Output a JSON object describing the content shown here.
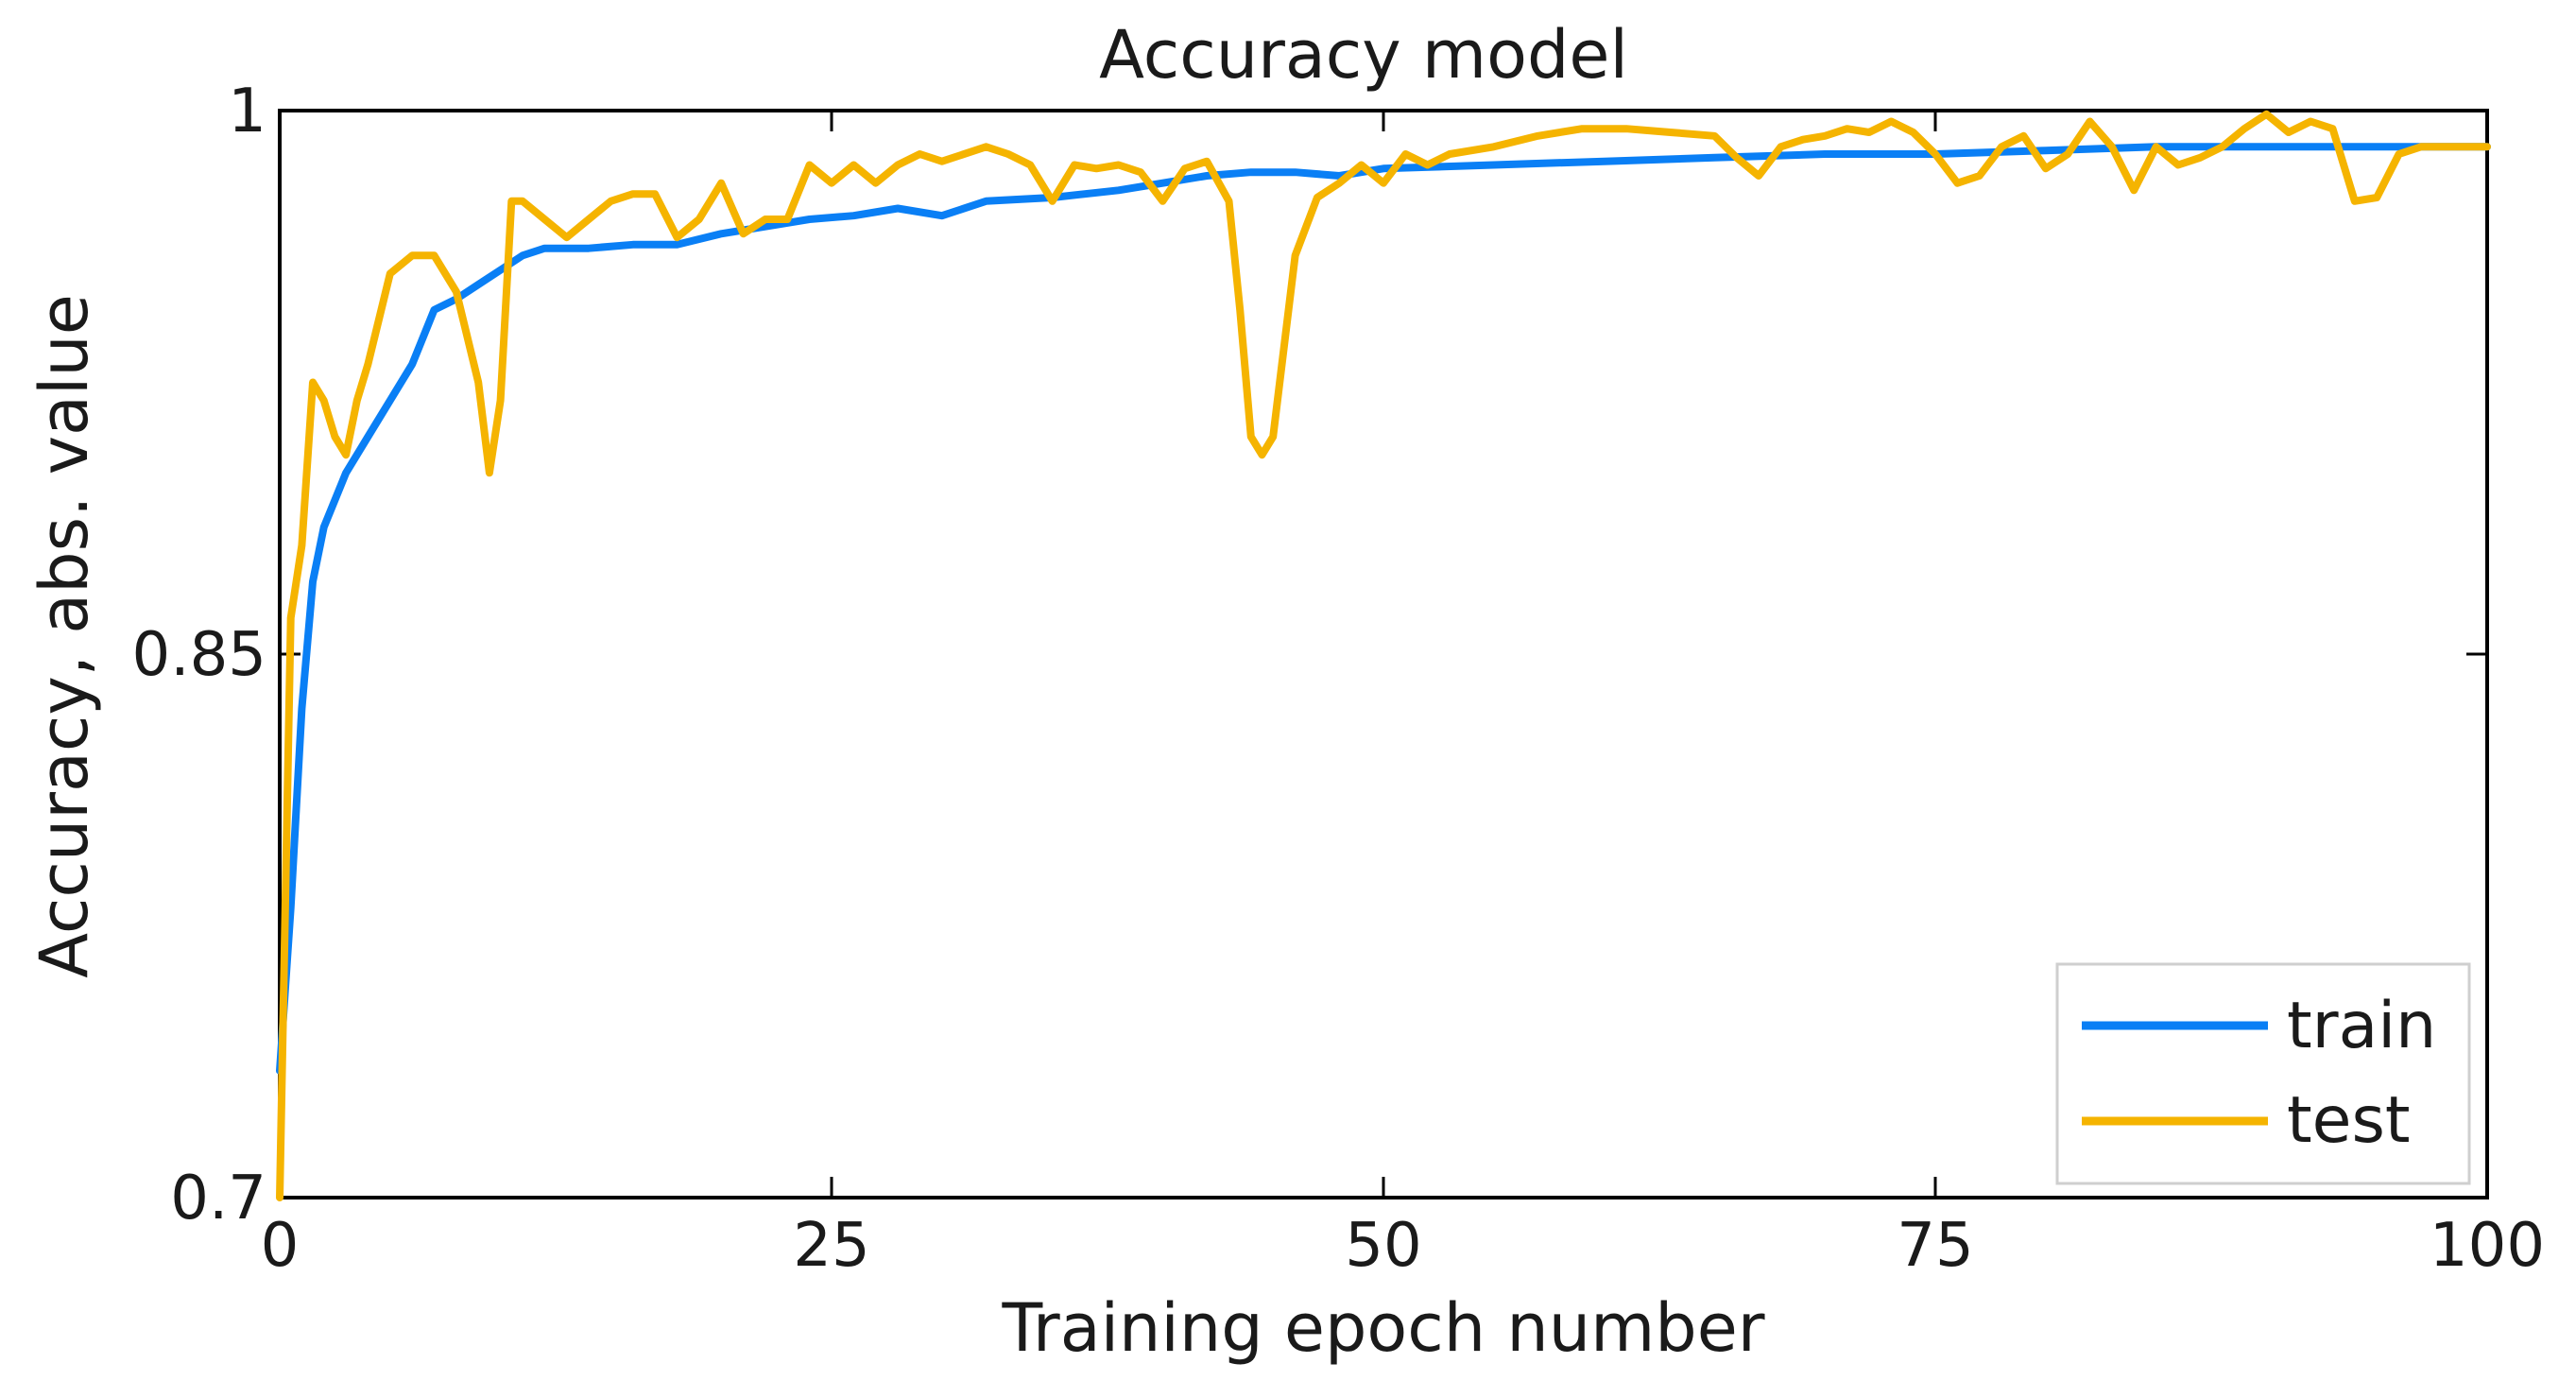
{
  "chart_data": {
    "type": "line",
    "title": "Accuracy model",
    "xlabel": "Training epoch number",
    "ylabel": "Accuracy, abs. value",
    "xlim": [
      0,
      100
    ],
    "ylim": [
      0.7,
      1.0
    ],
    "xticks": [
      0,
      25,
      50,
      75,
      100
    ],
    "xtick_labels": [
      "0",
      "25",
      "50",
      "75",
      "100"
    ],
    "yticks": [
      0.7,
      0.85,
      1.0
    ],
    "ytick_labels": [
      "0.7",
      "0.85",
      "1"
    ],
    "grid": false,
    "legend_position": "bottom-right",
    "series": [
      {
        "name": "train",
        "color": "#0a7ff5",
        "x": [
          0,
          0.5,
          1,
          1.5,
          2,
          3,
          4,
          5,
          6,
          7,
          8,
          9,
          10,
          11,
          12,
          14,
          16,
          18,
          20,
          22,
          24,
          26,
          28,
          30,
          32,
          35,
          38,
          40,
          42,
          44,
          46,
          48,
          50,
          55,
          60,
          65,
          70,
          75,
          80,
          85,
          90,
          95,
          100
        ],
        "y": [
          0.735,
          0.78,
          0.835,
          0.87,
          0.885,
          0.9,
          0.91,
          0.92,
          0.93,
          0.945,
          0.948,
          0.952,
          0.956,
          0.96,
          0.962,
          0.962,
          0.963,
          0.963,
          0.966,
          0.968,
          0.97,
          0.971,
          0.973,
          0.971,
          0.975,
          0.976,
          0.978,
          0.98,
          0.982,
          0.983,
          0.983,
          0.982,
          0.984,
          0.985,
          0.986,
          0.987,
          0.988,
          0.988,
          0.989,
          0.99,
          0.99,
          0.99,
          0.99
        ]
      },
      {
        "name": "test",
        "color": "#f5b400",
        "x": [
          0,
          0.5,
          1,
          1.5,
          2,
          2.5,
          3,
          3.5,
          4,
          5,
          6,
          7,
          8,
          9,
          9.5,
          10,
          10.5,
          11,
          12,
          13,
          14,
          15,
          16,
          17,
          18,
          19,
          20,
          21,
          22,
          23,
          24,
          25,
          26,
          27,
          28,
          29,
          30,
          32,
          33,
          34,
          35,
          36,
          37,
          38,
          39,
          40,
          41,
          42,
          43,
          43.5,
          44,
          44.5,
          45,
          46,
          47,
          48,
          49,
          50,
          51,
          52,
          53,
          55,
          57,
          59,
          61,
          63,
          65,
          66,
          67,
          68,
          69,
          70,
          71,
          72,
          73,
          74,
          75,
          76,
          77,
          78,
          79,
          80,
          81,
          82,
          83,
          84,
          85,
          86,
          87,
          88,
          89,
          90,
          91,
          92,
          93,
          94,
          95,
          96,
          97,
          98,
          100
        ],
        "y": [
          0.7,
          0.86,
          0.88,
          0.925,
          0.92,
          0.91,
          0.905,
          0.92,
          0.93,
          0.955,
          0.96,
          0.96,
          0.95,
          0.925,
          0.9,
          0.92,
          0.975,
          0.975,
          0.97,
          0.965,
          0.97,
          0.975,
          0.977,
          0.977,
          0.965,
          0.97,
          0.98,
          0.966,
          0.97,
          0.97,
          0.985,
          0.98,
          0.985,
          0.98,
          0.985,
          0.988,
          0.986,
          0.99,
          0.988,
          0.985,
          0.975,
          0.985,
          0.984,
          0.985,
          0.983,
          0.975,
          0.984,
          0.986,
          0.975,
          0.945,
          0.91,
          0.905,
          0.91,
          0.96,
          0.976,
          0.98,
          0.985,
          0.98,
          0.988,
          0.985,
          0.988,
          0.99,
          0.993,
          0.995,
          0.995,
          0.994,
          0.993,
          0.987,
          0.982,
          0.99,
          0.992,
          0.993,
          0.995,
          0.994,
          0.997,
          0.994,
          0.988,
          0.98,
          0.982,
          0.99,
          0.993,
          0.984,
          0.988,
          0.997,
          0.99,
          0.978,
          0.99,
          0.985,
          0.987,
          0.99,
          0.995,
          0.999,
          0.994,
          0.997,
          0.995,
          0.975,
          0.976,
          0.988,
          0.99,
          0.99,
          0.99
        ]
      }
    ]
  }
}
